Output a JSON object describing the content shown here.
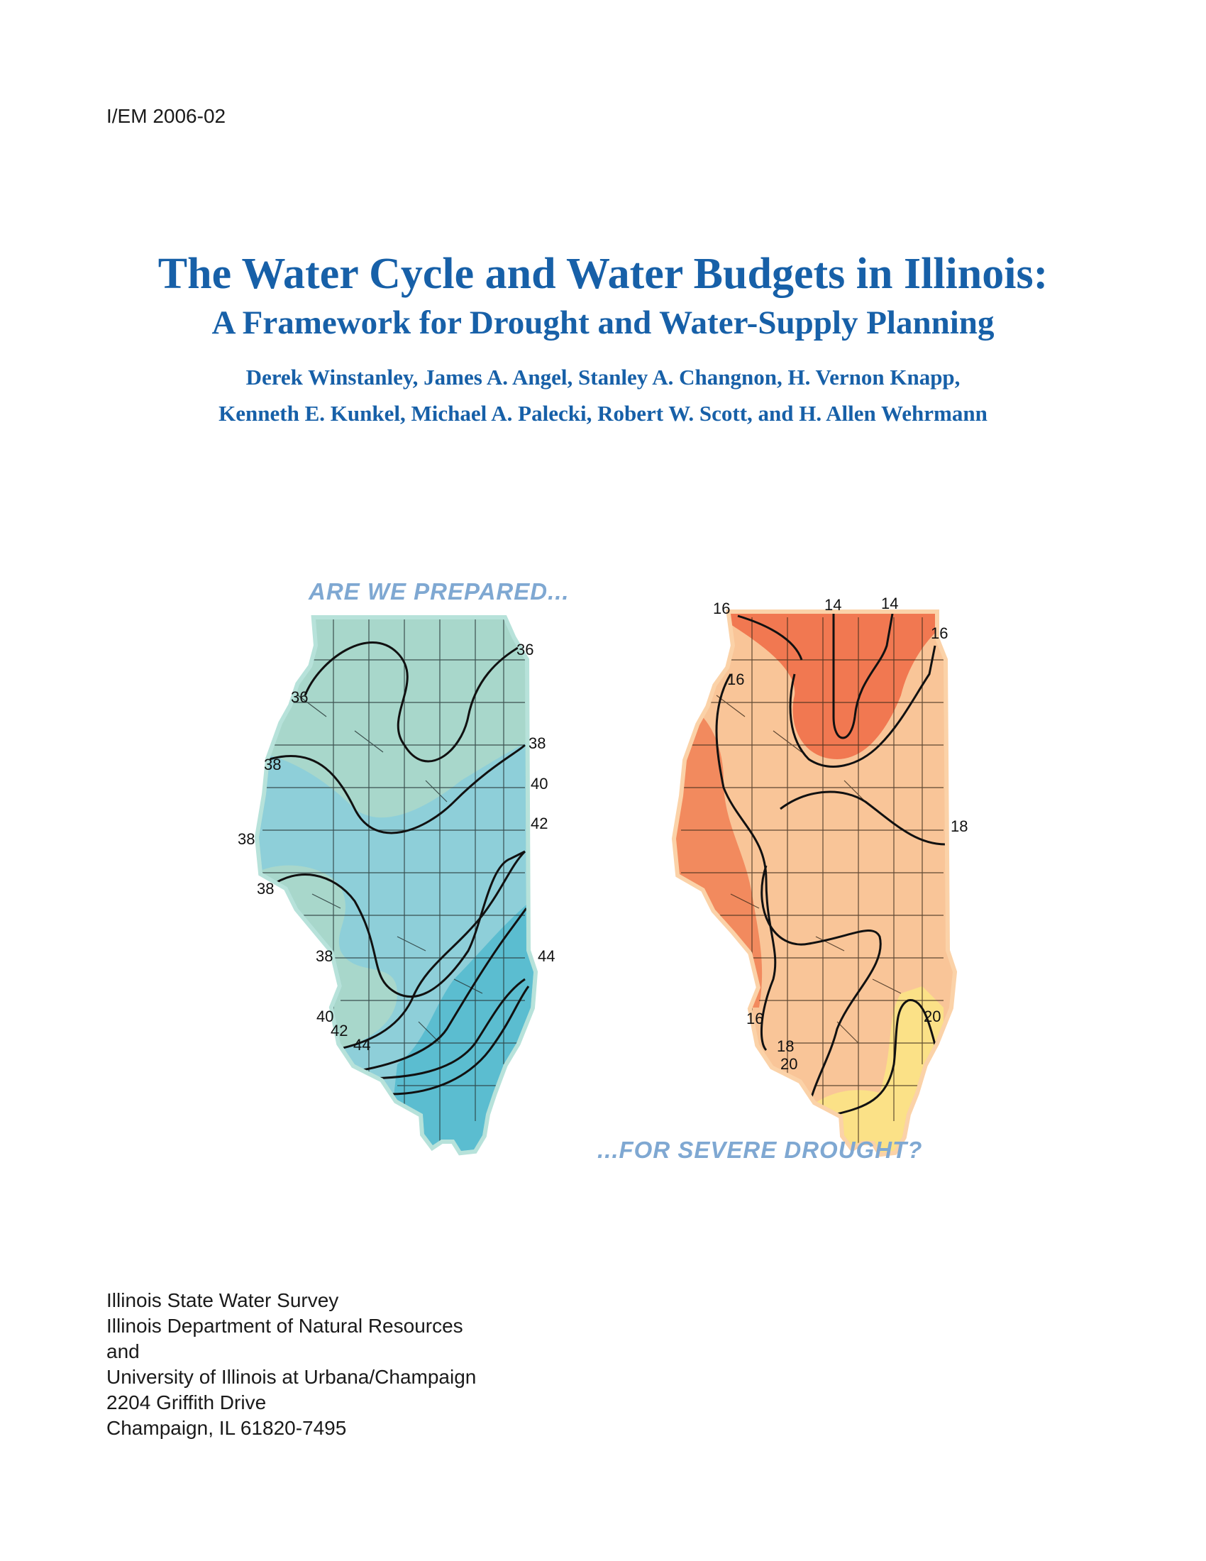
{
  "report_number": "I/EM 2006-02",
  "title": "The Water Cycle and Water Budgets in Illinois:",
  "subtitle": "A Framework for Drought and Water-Supply Planning",
  "authors": [
    "Derek Winstanley, James A. Angel, Stanley A. Changnon, H. Vernon Knapp,",
    "Kenneth E. Kunkel, Michael A. Palecki, Robert W. Scott, and H. Allen Wehrmann"
  ],
  "tagline_top": "ARE WE PREPARED...",
  "tagline_bottom": "...FOR SEVERE DROUGHT?",
  "left_map": {
    "fill_colors": [
      "#a8d7cb",
      "#8ecfd9",
      "#5bbdd0"
    ],
    "contour_labels": [
      "36",
      "36",
      "38",
      "38",
      "38",
      "38",
      "38",
      "40",
      "42",
      "44",
      "40",
      "42",
      "44"
    ]
  },
  "right_map": {
    "fill_colors": [
      "#f06a44",
      "#f39266",
      "#f9c598",
      "#fbe187"
    ],
    "contour_labels": [
      "16",
      "14",
      "14",
      "16",
      "16",
      "18",
      "16",
      "20",
      "18",
      "20"
    ]
  },
  "publisher": [
    "Illinois State Water Survey",
    "Illinois Department of Natural Resources",
    "and",
    "University of Illinois at Urbana/Champaign",
    "2204 Griffith Drive",
    "Champaign, IL 61820-7495"
  ]
}
